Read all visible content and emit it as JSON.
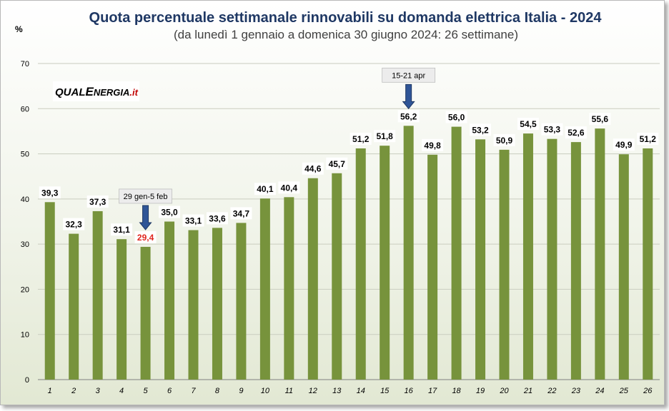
{
  "chart_data": {
    "type": "bar",
    "title": "Quota percentuale settimanale rinnovabili su domanda elettrica Italia - 2024",
    "subtitle": "(da lunedì 1 gennaio a domenica 30 giugno 2024: 26 settimane)",
    "ylabel": "%",
    "xlabel": "",
    "ylim": [
      0,
      70
    ],
    "yticks": [
      0,
      10,
      20,
      30,
      40,
      50,
      60,
      70
    ],
    "grid": true,
    "categories": [
      "1",
      "2",
      "3",
      "4",
      "5",
      "6",
      "7",
      "8",
      "9",
      "10",
      "11",
      "12",
      "13",
      "14",
      "15",
      "16",
      "17",
      "18",
      "19",
      "20",
      "21",
      "22",
      "23",
      "24",
      "25",
      "26"
    ],
    "values": [
      39.3,
      32.3,
      37.3,
      31.1,
      29.4,
      35.0,
      33.1,
      33.6,
      34.7,
      40.1,
      40.4,
      44.6,
      45.7,
      51.2,
      51.8,
      56.2,
      49.8,
      56.0,
      53.2,
      50.9,
      54.5,
      53.3,
      52.6,
      55.6,
      49.9,
      51.2
    ],
    "value_labels": [
      "39,3",
      "32,3",
      "37,3",
      "31,1",
      "29,4",
      "35,0",
      "33,1",
      "33,6",
      "34,7",
      "40,1",
      "40,4",
      "44,6",
      "45,7",
      "51,2",
      "51,8",
      "56,2",
      "49,8",
      "56,0",
      "53,2",
      "50,9",
      "54,5",
      "53,3",
      "52,6",
      "55,6",
      "49,9",
      "51,2"
    ],
    "bar_color": "#77933c",
    "highlight": {
      "index": 4,
      "color": "#e0261e"
    },
    "annotations": [
      {
        "text": "29 gen-5 feb",
        "category_index": 4
      },
      {
        "text": "15-21 apr",
        "category_index": 15
      }
    ]
  },
  "logo": {
    "part1": "QUAL",
    "part2": "ENERGIA",
    "part3": ".it",
    "text": "QUALENERGIA.it"
  }
}
